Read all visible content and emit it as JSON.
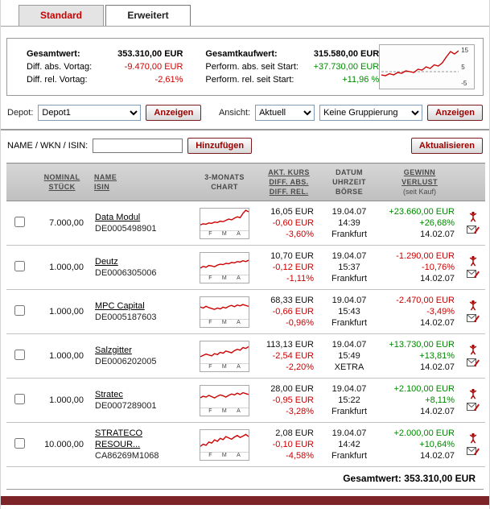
{
  "tabs": [
    {
      "label": "Standard",
      "active": true
    },
    {
      "label": "Erweitert",
      "active": false
    }
  ],
  "summary": {
    "left": [
      {
        "label": "Gesamtwert:",
        "value": "353.310,00 EUR",
        "tone": "neutral"
      },
      {
        "label": "Diff. abs. Vortag:",
        "value": "-9.470,00 EUR",
        "tone": "neg"
      },
      {
        "label": "Diff. rel. Vortag:",
        "value": "-2,61%",
        "tone": "neg"
      }
    ],
    "right": [
      {
        "label": "Gesamtkaufwert:",
        "value": "315.580,00 EUR",
        "tone": "neutral"
      },
      {
        "label": "Perform. abs. seit Start:",
        "value": "+37.730,00 EUR",
        "tone": "pos"
      },
      {
        "label": "Perform. rel. seit Start:",
        "value": "+11,96 %",
        "tone": "pos"
      }
    ],
    "sparkline": {
      "yticks": [
        "15",
        "5",
        "-5"
      ],
      "points": [
        30,
        28,
        33,
        30,
        36,
        34,
        40,
        38,
        36,
        44,
        42,
        50,
        46,
        55,
        52,
        60,
        75,
        88,
        82,
        90
      ]
    }
  },
  "controls": {
    "depot_label": "Depot:",
    "depot_select": "Depot1",
    "depot_show_button": "Anzeigen",
    "view_label": "Ansicht:",
    "view_select": "Aktuell",
    "grouping_select": "Keine Gruppierung",
    "view_show_button": "Anzeigen"
  },
  "search": {
    "label": "NAME / WKN / ISIN:",
    "input_value": "",
    "add_button": "Hinzufügen",
    "refresh_button": "Aktualisieren"
  },
  "table": {
    "headers": {
      "nominal": [
        "NOMINAL",
        "STÜCK"
      ],
      "name": [
        "NAME",
        "ISIN"
      ],
      "chart": [
        "3-MONATS",
        "CHART"
      ],
      "kurs": [
        "AKT. KURS",
        "DIFF. ABS.",
        "DIFF. REL."
      ],
      "datum": [
        "DATUM",
        "UHRZEIT",
        "BÖRSE"
      ],
      "gewinn": [
        "GEWINN",
        "VERLUST",
        "(seit Kauf)"
      ]
    },
    "month_labels": [
      "F",
      "M",
      "A"
    ],
    "rows": [
      {
        "nominal": "7.000,00",
        "name": "Data Modul",
        "isin": "DE0005498901",
        "kurs": "16,05 EUR",
        "diff_abs": "-0,60 EUR",
        "diff_rel": "-3,60%",
        "datum": "19.04.07",
        "uhrzeit": "14:39",
        "boerse": "Frankfurt",
        "gewinn_abs": "+23.660,00 EUR",
        "gewinn_rel": "+26,68%",
        "kaufdatum": "14.02.07",
        "spark": [
          25,
          30,
          28,
          34,
          32,
          38,
          36,
          42,
          40,
          46,
          52,
          48,
          56,
          62,
          58,
          78,
          92,
          85
        ]
      },
      {
        "nominal": "1.000,00",
        "name": "Deutz",
        "isin": "DE0006305006",
        "kurs": "10,70 EUR",
        "diff_abs": "-0,12 EUR",
        "diff_rel": "-1,11%",
        "datum": "19.04.07",
        "uhrzeit": "15:37",
        "boerse": "Frankfurt",
        "gewinn_abs": "-1.290,00 EUR",
        "gewinn_rel": "-10,76%",
        "kaufdatum": "14.02.07",
        "spark": [
          30,
          38,
          34,
          42,
          40,
          36,
          44,
          48,
          46,
          52,
          50,
          56,
          54,
          60,
          58,
          64,
          60,
          66
        ]
      },
      {
        "nominal": "1.000,00",
        "name": "MPC Capital",
        "isin": "DE0005187603",
        "kurs": "68,33 EUR",
        "diff_abs": "-0,66 EUR",
        "diff_rel": "-0,96%",
        "datum": "19.04.07",
        "uhrzeit": "15:43",
        "boerse": "Frankfurt",
        "gewinn_abs": "-2.470,00 EUR",
        "gewinn_rel": "-3,49%",
        "kaufdatum": "14.02.07",
        "spark": [
          55,
          50,
          58,
          52,
          48,
          44,
          50,
          46,
          54,
          50,
          58,
          62,
          56,
          64,
          60,
          66,
          62,
          58
        ]
      },
      {
        "nominal": "1.000,00",
        "name": "Salzgitter",
        "isin": "DE0006202005",
        "kurs": "113,13 EUR",
        "diff_abs": "-2,54 EUR",
        "diff_rel": "-2,20%",
        "datum": "19.04.07",
        "uhrzeit": "15:49",
        "boerse": "XETRA",
        "gewinn_abs": "+13.730,00 EUR",
        "gewinn_rel": "+13,81%",
        "kaufdatum": "14.02.07",
        "spark": [
          30,
          36,
          42,
          38,
          34,
          44,
          40,
          50,
          46,
          56,
          52,
          48,
          58,
          64,
          60,
          72,
          68,
          76
        ]
      },
      {
        "nominal": "1.000,00",
        "name": "Stratec",
        "isin": "DE0007289001",
        "kurs": "28,00 EUR",
        "diff_abs": "-0,95 EUR",
        "diff_rel": "-3,28%",
        "datum": "19.04.07",
        "uhrzeit": "15:22",
        "boerse": "Frankfurt",
        "gewinn_abs": "+2.100,00 EUR",
        "gewinn_rel": "+8,11%",
        "kaufdatum": "14.02.07",
        "spark": [
          45,
          52,
          48,
          56,
          50,
          44,
          52,
          58,
          54,
          48,
          56,
          62,
          58,
          66,
          60,
          68,
          64,
          60
        ]
      },
      {
        "nominal": "10.000,00",
        "name": "STRATECO RESOUR...",
        "isin": "CA86269M1068",
        "kurs": "2,08 EUR",
        "diff_abs": "-0,10 EUR",
        "diff_rel": "-4,58%",
        "datum": "19.04.07",
        "uhrzeit": "14:42",
        "boerse": "Frankfurt",
        "gewinn_abs": "+2.000,00 EUR",
        "gewinn_rel": "+10,64%",
        "kaufdatum": "14.02.07",
        "spark": [
          25,
          35,
          30,
          45,
          40,
          55,
          48,
          62,
          56,
          70,
          64,
          58,
          68,
          75,
          66,
          72,
          80,
          70
        ]
      }
    ]
  },
  "footer": {
    "label": "Gesamtwert:",
    "value": "353.310,00 EUR"
  },
  "colors": {
    "accent": "#cc0000",
    "positive": "#008800",
    "negative": "#cc0000",
    "bottom_bar": "#7d2428"
  }
}
